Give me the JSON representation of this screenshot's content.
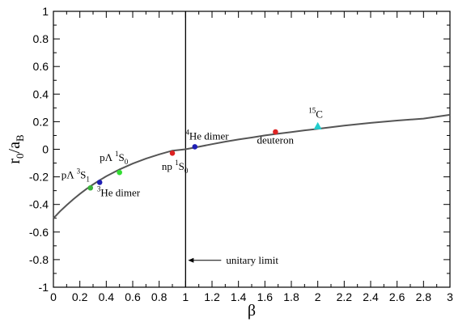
{
  "chart_data": {
    "type": "line",
    "xlabel": "β",
    "ylabel_main": "r",
    "ylabel_sub0": "0",
    "ylabel_mid": "/a",
    "ylabel_sub1": "B",
    "xlim": [
      0,
      3
    ],
    "ylim": [
      -1,
      1
    ],
    "x_ticks": [
      0,
      0.2,
      0.4,
      0.6,
      0.8,
      1,
      1.2,
      1.4,
      1.6,
      1.8,
      2,
      2.2,
      2.4,
      2.6,
      2.8,
      3
    ],
    "x_tick_labels": [
      "0",
      "0.2",
      "0.4",
      "0.6",
      "0.8",
      "1",
      "1.2",
      "1.4",
      "1.6",
      "1.8",
      "2",
      "2.2",
      "2.4",
      "2.6",
      "2.8",
      "3"
    ],
    "y_ticks": [
      -1,
      -0.8,
      -0.6,
      -0.4,
      -0.2,
      0,
      0.2,
      0.4,
      0.6,
      0.8,
      1
    ],
    "y_tick_labels": [
      "-1",
      "-0.8",
      "-0.6",
      "-0.4",
      "-0.2",
      "0",
      "0.2",
      "0.4",
      "0.6",
      "0.8",
      "1"
    ],
    "curve": {
      "x": [
        0,
        0.05,
        0.1,
        0.15,
        0.2,
        0.25,
        0.3,
        0.35,
        0.4,
        0.5,
        0.6,
        0.7,
        0.8,
        0.9,
        1.0,
        1.1,
        1.2,
        1.3,
        1.4,
        1.5,
        1.6,
        1.7,
        1.8,
        1.9,
        2.0,
        2.2,
        2.4,
        2.6,
        2.8,
        3.0
      ],
      "y": [
        -0.5,
        -0.45,
        -0.405,
        -0.363,
        -0.324,
        -0.288,
        -0.255,
        -0.224,
        -0.196,
        -0.146,
        -0.104,
        -0.068,
        -0.037,
        -0.01,
        0.0,
        0.018,
        0.037,
        0.055,
        0.071,
        0.085,
        0.1,
        0.113,
        0.125,
        0.137,
        0.148,
        0.171,
        0.191,
        0.208,
        0.222,
        0.25
      ],
      "color": "#555555"
    },
    "unitary_line": {
      "x": 1
    },
    "points": [
      {
        "name": "pΛ 3S1",
        "x": 0.28,
        "y": -0.28,
        "color": "#3ab43a"
      },
      {
        "name": "3He dimer",
        "x": 0.35,
        "y": -0.24,
        "color": "#1f1fb4"
      },
      {
        "name": "pΛ 1S0",
        "x": 0.5,
        "y": -0.168,
        "color": "#33dd33"
      },
      {
        "name": "np 1S0",
        "x": 0.9,
        "y": -0.028,
        "color": "#dd2222"
      },
      {
        "name": "4He dimer",
        "x": 1.07,
        "y": 0.018,
        "color": "#1f1fb4"
      },
      {
        "name": "deuteron",
        "x": 1.68,
        "y": 0.126,
        "color": "#dd2222"
      },
      {
        "name": "15C",
        "x": 2.0,
        "y": 0.168,
        "color": "#22cccc"
      }
    ],
    "annotations": {
      "pL3": {
        "pre": "pΛ ",
        "sup": "3",
        "main": "S",
        "sub": "1"
      },
      "he3": {
        "sup": "3",
        "main": "He dimer"
      },
      "pL1": {
        "pre": "pΛ ",
        "sup": "1",
        "main": "S",
        "sub": "0"
      },
      "np": {
        "pre": "np ",
        "sup": "1",
        "main": "S",
        "sub": "0"
      },
      "he4": {
        "sup": "4",
        "main": "He dimer"
      },
      "deut": {
        "main": "deuteron"
      },
      "c15": {
        "sup": "15",
        "main": "C"
      },
      "unitary": {
        "main": "unitary limit"
      }
    }
  }
}
